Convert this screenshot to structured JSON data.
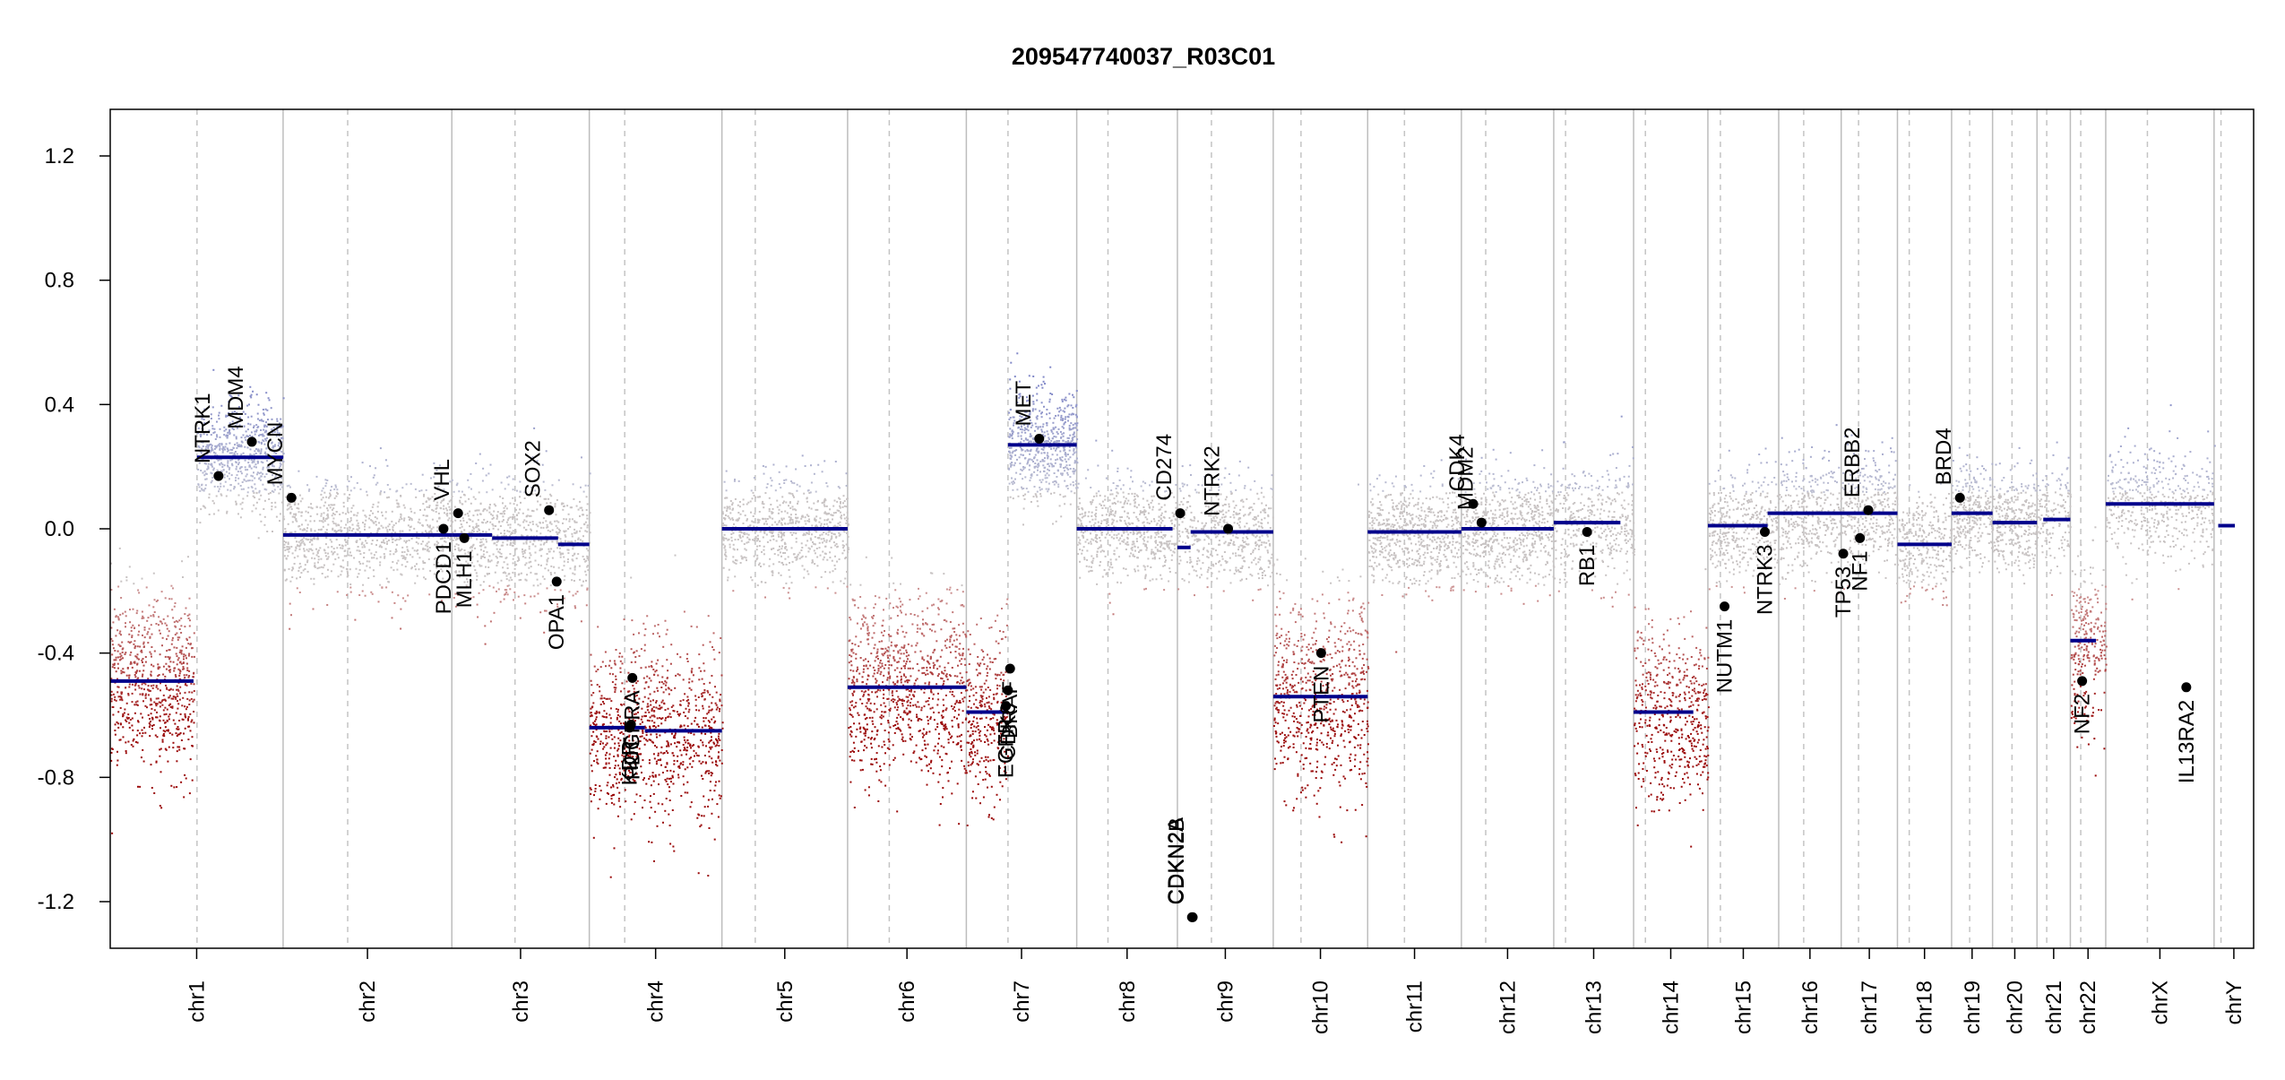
{
  "chart_data": {
    "type": "scatter",
    "title": "209547740037_R03C01",
    "xlabel": "",
    "ylabel": "",
    "ylim": [
      -1.35,
      1.35
    ],
    "yticks": [
      -1.2,
      -0.8,
      -0.4,
      0.0,
      0.4,
      0.8,
      1.2
    ],
    "ytick_labels": [
      "-1.2",
      "-0.8",
      "-0.4",
      "0.0",
      "0.4",
      "0.8",
      "1.2"
    ],
    "grid": "vertical chromosome boundaries (solid) and centromeres (dashed)",
    "legend": "none",
    "colors": {
      "gain": "#8f96c8",
      "neutral": "#c8c8c8",
      "loss": "#a01818",
      "segment": "#00008b",
      "gene_point": "#000000",
      "boundary": "#bdbdbd",
      "centromere": "#c4c4c4"
    },
    "chromosomes": [
      {
        "name": "chr1",
        "start": 0,
        "end": 249,
        "centro": 125
      },
      {
        "name": "chr2",
        "start": 249,
        "end": 492,
        "centro": 342
      },
      {
        "name": "chr3",
        "start": 492,
        "end": 690,
        "centro": 583
      },
      {
        "name": "chr4",
        "start": 690,
        "end": 881,
        "centro": 741
      },
      {
        "name": "chr5",
        "start": 881,
        "end": 1062,
        "centro": 929
      },
      {
        "name": "chr6",
        "start": 1062,
        "end": 1233,
        "centro": 1122
      },
      {
        "name": "chr7",
        "start": 1233,
        "end": 1392,
        "centro": 1293
      },
      {
        "name": "chr8",
        "start": 1392,
        "end": 1537,
        "centro": 1437
      },
      {
        "name": "chr9",
        "start": 1537,
        "end": 1675,
        "centro": 1586
      },
      {
        "name": "chr10",
        "start": 1675,
        "end": 1811,
        "centro": 1715
      },
      {
        "name": "chr11",
        "start": 1811,
        "end": 1946,
        "centro": 1864
      },
      {
        "name": "chr12",
        "start": 1946,
        "end": 2079,
        "centro": 1981
      },
      {
        "name": "chr13",
        "start": 2079,
        "end": 2194,
        "centro": 2096
      },
      {
        "name": "chr14",
        "start": 2194,
        "end": 2301,
        "centro": 2211
      },
      {
        "name": "chr15",
        "start": 2301,
        "end": 2403,
        "centro": 2319
      },
      {
        "name": "chr16",
        "start": 2403,
        "end": 2493,
        "centro": 2439
      },
      {
        "name": "chr17",
        "start": 2493,
        "end": 2574,
        "centro": 2518
      },
      {
        "name": "chr18",
        "start": 2574,
        "end": 2652,
        "centro": 2591
      },
      {
        "name": "chr19",
        "start": 2652,
        "end": 2711,
        "centro": 2678
      },
      {
        "name": "chr20",
        "start": 2711,
        "end": 2775,
        "centro": 2739
      },
      {
        "name": "chr21",
        "start": 2775,
        "end": 2823,
        "centro": 2789
      },
      {
        "name": "chr22",
        "start": 2823,
        "end": 2874,
        "centro": 2838
      },
      {
        "name": "chrX",
        "start": 2874,
        "end": 3030,
        "centro": 2934
      },
      {
        "name": "chrY",
        "start": 3030,
        "end": 3087,
        "centro": 3040
      }
    ],
    "segments": [
      {
        "x0": 0,
        "x1": 120,
        "y": -0.49
      },
      {
        "x0": 125,
        "x1": 249,
        "y": 0.23
      },
      {
        "x0": 249,
        "x1": 492,
        "y": -0.02
      },
      {
        "x0": 492,
        "x1": 550,
        "y": -0.02
      },
      {
        "x0": 550,
        "x1": 645,
        "y": -0.03
      },
      {
        "x0": 645,
        "x1": 690,
        "y": -0.05
      },
      {
        "x0": 690,
        "x1": 770,
        "y": -0.64
      },
      {
        "x0": 770,
        "x1": 881,
        "y": -0.65
      },
      {
        "x0": 881,
        "x1": 1062,
        "y": 0.0
      },
      {
        "x0": 1062,
        "x1": 1233,
        "y": -0.51
      },
      {
        "x0": 1233,
        "x1": 1293,
        "y": -0.59
      },
      {
        "x0": 1293,
        "x1": 1392,
        "y": 0.27
      },
      {
        "x0": 1392,
        "x1": 1530,
        "y": 0.0
      },
      {
        "x0": 1537,
        "x1": 1556,
        "y": -0.06
      },
      {
        "x0": 1556,
        "x1": 1675,
        "y": -0.01
      },
      {
        "x0": 1675,
        "x1": 1811,
        "y": -0.54
      },
      {
        "x0": 1811,
        "x1": 1946,
        "y": -0.01
      },
      {
        "x0": 1946,
        "x1": 2079,
        "y": 0.0
      },
      {
        "x0": 2079,
        "x1": 2175,
        "y": 0.02
      },
      {
        "x0": 2194,
        "x1": 2280,
        "y": -0.59
      },
      {
        "x0": 2301,
        "x1": 2387,
        "y": 0.01
      },
      {
        "x0": 2387,
        "x1": 2574,
        "y": 0.05
      },
      {
        "x0": 2574,
        "x1": 2652,
        "y": -0.05
      },
      {
        "x0": 2652,
        "x1": 2711,
        "y": 0.05
      },
      {
        "x0": 2711,
        "x1": 2775,
        "y": 0.02
      },
      {
        "x0": 2784,
        "x1": 2823,
        "y": 0.03
      },
      {
        "x0": 2823,
        "x1": 2860,
        "y": -0.36
      },
      {
        "x0": 2874,
        "x1": 3030,
        "y": 0.08
      },
      {
        "x0": 3036,
        "x1": 3060,
        "y": 0.01
      }
    ],
    "noise_regions": [
      {
        "x0": 0,
        "x1": 120,
        "mean": -0.49,
        "sd": 0.14,
        "n": 700
      },
      {
        "x0": 125,
        "x1": 249,
        "mean": 0.23,
        "sd": 0.09,
        "n": 650
      },
      {
        "x0": 249,
        "x1": 492,
        "mean": -0.02,
        "sd": 0.09,
        "n": 900
      },
      {
        "x0": 492,
        "x1": 690,
        "mean": -0.03,
        "sd": 0.1,
        "n": 800
      },
      {
        "x0": 690,
        "x1": 881,
        "mean": -0.65,
        "sd": 0.15,
        "n": 900
      },
      {
        "x0": 881,
        "x1": 1062,
        "mean": 0.0,
        "sd": 0.08,
        "n": 700
      },
      {
        "x0": 1062,
        "x1": 1233,
        "mean": -0.51,
        "sd": 0.15,
        "n": 900
      },
      {
        "x0": 1233,
        "x1": 1293,
        "mean": -0.59,
        "sd": 0.14,
        "n": 300
      },
      {
        "x0": 1293,
        "x1": 1392,
        "mean": 0.27,
        "sd": 0.09,
        "n": 600
      },
      {
        "x0": 1392,
        "x1": 1537,
        "mean": 0.0,
        "sd": 0.08,
        "n": 600
      },
      {
        "x0": 1537,
        "x1": 1675,
        "mean": -0.01,
        "sd": 0.08,
        "n": 500
      },
      {
        "x0": 1675,
        "x1": 1811,
        "mean": -0.54,
        "sd": 0.16,
        "n": 700
      },
      {
        "x0": 1811,
        "x1": 1946,
        "mean": -0.01,
        "sd": 0.08,
        "n": 650
      },
      {
        "x0": 1946,
        "x1": 2079,
        "mean": 0.0,
        "sd": 0.09,
        "n": 650
      },
      {
        "x0": 2079,
        "x1": 2194,
        "mean": 0.02,
        "sd": 0.09,
        "n": 400
      },
      {
        "x0": 2194,
        "x1": 2301,
        "mean": -0.59,
        "sd": 0.14,
        "n": 500
      },
      {
        "x0": 2301,
        "x1": 2403,
        "mean": 0.01,
        "sd": 0.09,
        "n": 400
      },
      {
        "x0": 2403,
        "x1": 2574,
        "mean": 0.05,
        "sd": 0.09,
        "n": 700
      },
      {
        "x0": 2574,
        "x1": 2652,
        "mean": -0.05,
        "sd": 0.08,
        "n": 300
      },
      {
        "x0": 2652,
        "x1": 2711,
        "mean": 0.05,
        "sd": 0.08,
        "n": 300
      },
      {
        "x0": 2711,
        "x1": 2775,
        "mean": 0.02,
        "sd": 0.08,
        "n": 300
      },
      {
        "x0": 2775,
        "x1": 2823,
        "mean": 0.03,
        "sd": 0.08,
        "n": 150
      },
      {
        "x0": 2823,
        "x1": 2874,
        "mean": -0.36,
        "sd": 0.13,
        "n": 250
      },
      {
        "x0": 2874,
        "x1": 3030,
        "mean": 0.08,
        "sd": 0.09,
        "n": 500
      }
    ],
    "genes": [
      {
        "name": "NTRK1",
        "x": 156,
        "y": 0.17,
        "pos": "above"
      },
      {
        "name": "MDM4",
        "x": 204,
        "y": 0.28,
        "pos": "above"
      },
      {
        "name": "MYCN",
        "x": 261,
        "y": 0.1,
        "pos": "above"
      },
      {
        "name": "PDCD1",
        "x": 480,
        "y": 0.0,
        "pos": "below"
      },
      {
        "name": "VHL",
        "x": 501,
        "y": 0.05,
        "pos": "above"
      },
      {
        "name": "MLH1",
        "x": 510,
        "y": -0.03,
        "pos": "below"
      },
      {
        "name": "SOX2",
        "x": 632,
        "y": 0.06,
        "pos": "above"
      },
      {
        "name": "OPA1",
        "x": 643,
        "y": -0.17,
        "pos": "below"
      },
      {
        "name": "KDR",
        "x": 748,
        "y": -0.64,
        "pos": "below"
      },
      {
        "name": "KIT",
        "x": 750,
        "y": -0.63,
        "pos": "below"
      },
      {
        "name": "PDGFRA",
        "x": 752,
        "y": -0.48,
        "pos": "below"
      },
      {
        "name": "EGFR",
        "x": 1290,
        "y": -0.57,
        "pos": "below"
      },
      {
        "name": "CDK6",
        "x": 1293,
        "y": -0.52,
        "pos": "below"
      },
      {
        "name": "BRAF",
        "x": 1296,
        "y": -0.45,
        "pos": "below"
      },
      {
        "name": "MET",
        "x": 1338,
        "y": 0.29,
        "pos": "above"
      },
      {
        "name": "CD274",
        "x": 1541,
        "y": 0.05,
        "pos": "above"
      },
      {
        "name": "CDKN2A",
        "x": 1558,
        "y": -1.25,
        "pos": "above"
      },
      {
        "name": "CDKN2B",
        "x": 1559,
        "y": -1.25,
        "pos": "above"
      },
      {
        "name": "NTRK2",
        "x": 1610,
        "y": 0.0,
        "pos": "above"
      },
      {
        "name": "PTEN",
        "x": 1744,
        "y": -0.4,
        "pos": "below"
      },
      {
        "name": "CDK4",
        "x": 1963,
        "y": 0.08,
        "pos": "above"
      },
      {
        "name": "MDM2",
        "x": 1975,
        "y": 0.02,
        "pos": "above"
      },
      {
        "name": "RB1",
        "x": 2127,
        "y": -0.01,
        "pos": "below"
      },
      {
        "name": "NUTM1",
        "x": 2325,
        "y": -0.25,
        "pos": "below"
      },
      {
        "name": "NTRK3",
        "x": 2383,
        "y": -0.01,
        "pos": "below"
      },
      {
        "name": "TP53",
        "x": 2496,
        "y": -0.08,
        "pos": "below"
      },
      {
        "name": "NF1",
        "x": 2520,
        "y": -0.03,
        "pos": "below"
      },
      {
        "name": "ERBB2",
        "x": 2532,
        "y": 0.06,
        "pos": "above"
      },
      {
        "name": "BRD4",
        "x": 2664,
        "y": 0.1,
        "pos": "above"
      },
      {
        "name": "NF2",
        "x": 2840,
        "y": -0.49,
        "pos": "below"
      },
      {
        "name": "IL13RA2",
        "x": 2990,
        "y": -0.51,
        "pos": "below"
      }
    ]
  }
}
